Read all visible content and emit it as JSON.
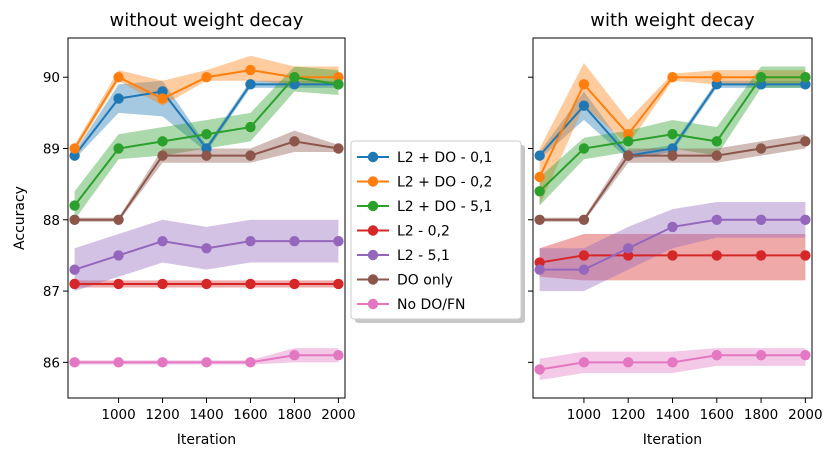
{
  "chart_data": [
    {
      "type": "line",
      "title": "without weight decay",
      "xlabel": "Iteration",
      "ylabel": "Accuracy",
      "xlim": [
        770,
        2030
      ],
      "ylim": [
        85.5,
        90.55
      ],
      "xticks": [
        1000,
        1200,
        1400,
        1600,
        1800,
        2000
      ],
      "yticks": [
        86,
        87,
        88,
        89,
        90
      ],
      "x": [
        800,
        1000,
        1200,
        1400,
        1600,
        1800,
        2000
      ],
      "series": [
        {
          "name": "L2 + DO - 0,1",
          "color": "#1f77b4",
          "values": [
            88.9,
            89.7,
            89.8,
            89.0,
            89.9,
            89.9,
            89.9
          ],
          "lower": [
            88.85,
            89.5,
            89.45,
            88.95,
            89.85,
            89.85,
            89.85
          ],
          "upper": [
            88.95,
            89.9,
            89.95,
            89.05,
            89.95,
            89.95,
            89.95
          ]
        },
        {
          "name": "L2 + DO - 0,2",
          "color": "#ff7f0e",
          "values": [
            89.0,
            90.0,
            89.7,
            90.0,
            90.1,
            90.0,
            90.0
          ],
          "lower": [
            88.95,
            89.95,
            89.6,
            89.95,
            89.95,
            89.9,
            89.9
          ],
          "upper": [
            89.05,
            90.1,
            89.95,
            90.1,
            90.3,
            90.15,
            90.15
          ]
        },
        {
          "name": "L2 + DO - 5,1",
          "color": "#2ca02c",
          "values": [
            88.2,
            89.0,
            89.1,
            89.2,
            89.3,
            90.0,
            89.9
          ],
          "lower": [
            88.0,
            88.85,
            88.9,
            89.0,
            89.1,
            89.8,
            89.75
          ],
          "upper": [
            88.4,
            89.2,
            89.3,
            89.4,
            89.5,
            90.15,
            90.1
          ]
        },
        {
          "name": "L2  - 0,2",
          "color": "#d62728",
          "values": [
            87.1,
            87.1,
            87.1,
            87.1,
            87.1,
            87.1,
            87.1
          ],
          "lower": [
            87.05,
            87.05,
            87.05,
            87.05,
            87.05,
            87.05,
            87.05
          ],
          "upper": [
            87.15,
            87.15,
            87.15,
            87.15,
            87.15,
            87.15,
            87.15
          ]
        },
        {
          "name": "L2  - 5,1",
          "color": "#9467bd",
          "values": [
            87.3,
            87.5,
            87.7,
            87.6,
            87.7,
            87.7,
            87.7
          ],
          "lower": [
            87.0,
            87.2,
            87.4,
            87.3,
            87.4,
            87.4,
            87.4
          ],
          "upper": [
            87.6,
            87.8,
            88.0,
            87.9,
            88.0,
            88.0,
            88.0
          ]
        },
        {
          "name": "DO only",
          "color": "#8c564b",
          "values": [
            88.0,
            88.0,
            88.9,
            88.9,
            88.9,
            89.1,
            89.0
          ],
          "lower": [
            87.97,
            87.97,
            88.8,
            88.8,
            88.8,
            88.95,
            88.95
          ],
          "upper": [
            88.03,
            88.03,
            89.0,
            89.0,
            89.0,
            89.25,
            89.05
          ]
        },
        {
          "name": "No DO/FN",
          "color": "#e377c2",
          "values": [
            86.0,
            86.0,
            86.0,
            86.0,
            86.0,
            86.1,
            86.1
          ],
          "lower": [
            85.97,
            85.97,
            85.97,
            85.97,
            85.97,
            86.0,
            86.0
          ],
          "upper": [
            86.03,
            86.03,
            86.03,
            86.03,
            86.03,
            86.2,
            86.2
          ]
        }
      ]
    },
    {
      "type": "line",
      "title": "with weight decay",
      "xlabel": "Iteration",
      "ylabel": "",
      "xlim": [
        770,
        2030
      ],
      "ylim": [
        85.5,
        90.55
      ],
      "xticks": [
        1000,
        1200,
        1400,
        1600,
        1800,
        2000
      ],
      "yticks": [
        86,
        87,
        88,
        89,
        90
      ],
      "x": [
        800,
        1000,
        1200,
        1400,
        1600,
        1800,
        2000
      ],
      "series": [
        {
          "name": "L2 + DO - 0,1",
          "color": "#1f77b4",
          "values": [
            88.9,
            89.6,
            88.9,
            89.0,
            89.9,
            89.9,
            89.9
          ],
          "lower": [
            88.85,
            89.4,
            88.85,
            88.95,
            89.85,
            89.85,
            89.85
          ],
          "upper": [
            88.95,
            89.8,
            88.95,
            89.05,
            89.95,
            89.95,
            89.95
          ]
        },
        {
          "name": "L2 + DO - 0,2",
          "color": "#ff7f0e",
          "values": [
            88.6,
            89.9,
            89.2,
            90.0,
            90.0,
            90.0,
            90.0
          ],
          "lower": [
            88.2,
            89.6,
            89.05,
            89.95,
            89.9,
            89.9,
            89.9
          ],
          "upper": [
            89.0,
            90.2,
            89.4,
            90.05,
            90.1,
            90.1,
            90.1
          ]
        },
        {
          "name": "L2 + DO - 5,1",
          "color": "#2ca02c",
          "values": [
            88.4,
            89.0,
            89.1,
            89.2,
            89.1,
            90.0,
            90.0
          ],
          "lower": [
            88.2,
            88.85,
            88.95,
            89.0,
            88.9,
            89.85,
            89.85
          ],
          "upper": [
            88.6,
            89.15,
            89.25,
            89.4,
            89.3,
            90.15,
            90.15
          ]
        },
        {
          "name": "L2  - 0,2",
          "color": "#d62728",
          "values": [
            87.4,
            87.5,
            87.5,
            87.5,
            87.5,
            87.5,
            87.5
          ],
          "lower": [
            87.2,
            87.15,
            87.15,
            87.15,
            87.15,
            87.15,
            87.15
          ],
          "upper": [
            87.6,
            87.8,
            87.8,
            87.8,
            87.8,
            87.8,
            87.8
          ]
        },
        {
          "name": "L2  - 5,1",
          "color": "#9467bd",
          "values": [
            87.3,
            87.3,
            87.6,
            87.9,
            88.0,
            88.0,
            88.0
          ],
          "lower": [
            87.0,
            87.0,
            87.3,
            87.6,
            87.75,
            87.75,
            87.75
          ],
          "upper": [
            87.6,
            87.6,
            87.9,
            88.15,
            88.25,
            88.25,
            88.25
          ]
        },
        {
          "name": "DO only",
          "color": "#8c564b",
          "values": [
            88.0,
            88.0,
            88.9,
            88.9,
            88.9,
            89.0,
            89.1
          ],
          "lower": [
            87.97,
            87.97,
            88.8,
            88.8,
            88.8,
            88.9,
            89.0
          ],
          "upper": [
            88.03,
            88.03,
            89.0,
            89.0,
            89.0,
            89.1,
            89.2
          ]
        },
        {
          "name": "No DO/FN",
          "color": "#e377c2",
          "values": [
            85.9,
            86.0,
            86.0,
            86.0,
            86.1,
            86.1,
            86.1
          ],
          "lower": [
            85.75,
            85.85,
            85.85,
            85.85,
            85.95,
            85.95,
            85.95
          ],
          "upper": [
            86.05,
            86.15,
            86.15,
            86.15,
            86.2,
            86.2,
            86.2
          ]
        }
      ]
    }
  ]
}
